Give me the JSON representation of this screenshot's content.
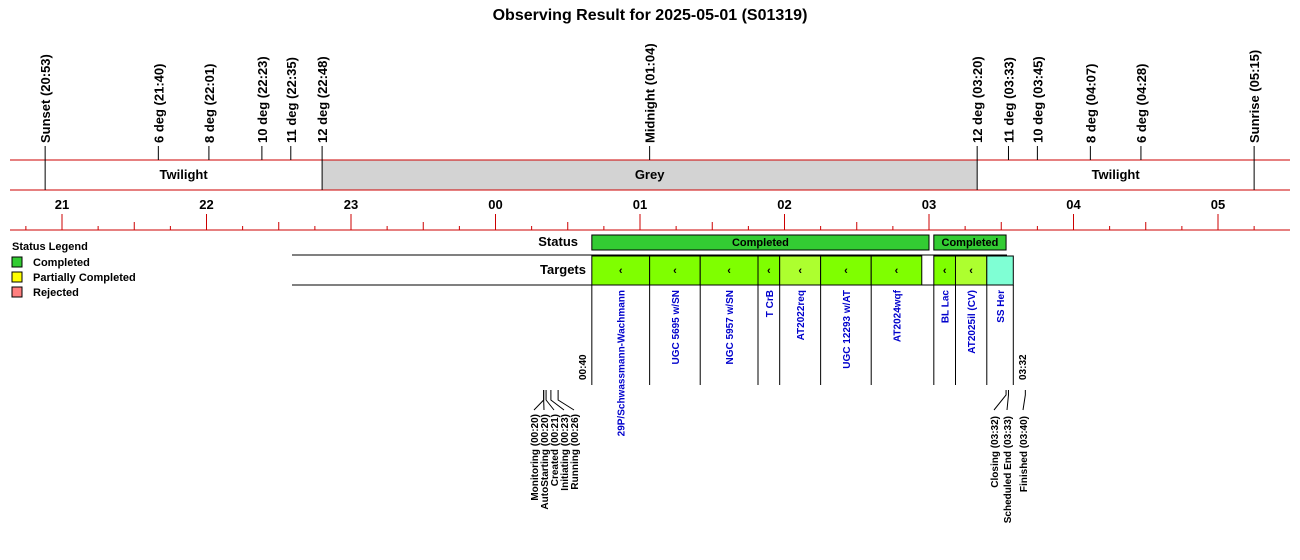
{
  "page": {
    "title": "Observing Result for 2025-05-01 (S01319)"
  },
  "sky_events": [
    {
      "label": "Sunset (20:53)",
      "time": "20:53"
    },
    {
      "label": "6 deg (21:40)",
      "time": "21:40"
    },
    {
      "label": "8 deg (22:01)",
      "time": "22:01"
    },
    {
      "label": "10 deg (22:23)",
      "time": "22:23"
    },
    {
      "label": "11 deg (22:35)",
      "time": "22:35"
    },
    {
      "label": "12 deg (22:48)",
      "time": "22:48"
    },
    {
      "label": "Midnight (01:04)",
      "time": "01:04"
    },
    {
      "label": "12 deg (03:20)",
      "time": "03:20"
    },
    {
      "label": "11 deg (03:33)",
      "time": "03:33"
    },
    {
      "label": "10 deg (03:45)",
      "time": "03:45"
    },
    {
      "label": "8 deg (04:07)",
      "time": "04:07"
    },
    {
      "label": "6 deg (04:28)",
      "time": "04:28"
    },
    {
      "label": "Sunrise (05:15)",
      "time": "05:15"
    }
  ],
  "sky_bands": [
    {
      "label": "Twilight",
      "start": "20:53",
      "end": "22:48",
      "color": "#ffffff"
    },
    {
      "label": "Grey",
      "start": "22:48",
      "end": "03:20",
      "color": "#d3d3d3"
    },
    {
      "label": "Twilight",
      "start": "03:20",
      "end": "05:15",
      "color": "#ffffff"
    }
  ],
  "hour_axis": [
    "21",
    "22",
    "23",
    "00",
    "01",
    "02",
    "03",
    "04",
    "05"
  ],
  "rows": {
    "status_label": "Status",
    "targets_label": "Targets"
  },
  "legend": {
    "title": "Status Legend",
    "items": [
      {
        "label": "Completed",
        "color": "#33cc33"
      },
      {
        "label": "Partially Completed",
        "color": "#ffff00"
      },
      {
        "label": "Rejected",
        "color": "#ff7f7f"
      }
    ]
  },
  "status_segments": [
    {
      "label": "Completed",
      "start": "00:40",
      "end": "03:00",
      "color": "#33cc33"
    },
    {
      "label": "Completed",
      "start": "03:02",
      "end": "03:32",
      "color": "#33cc33"
    }
  ],
  "targets": [
    {
      "name": "29P/Schwassmann-Wachmann",
      "start": "00:40",
      "end": "01:04",
      "color": "#7fff00",
      "mark": "‹"
    },
    {
      "name": "UGC 5695 w/SN",
      "start": "01:04",
      "end": "01:25",
      "color": "#7fff00",
      "mark": "‹"
    },
    {
      "name": "NGC 5957 w/SN",
      "start": "01:25",
      "end": "01:49",
      "color": "#7fff00",
      "mark": "‹"
    },
    {
      "name": "T CrB",
      "start": "01:49",
      "end": "01:58",
      "color": "#7fff00",
      "mark": "‹"
    },
    {
      "name": "AT2022req",
      "start": "01:58",
      "end": "02:15",
      "color": "#adff2f",
      "mark": "‹"
    },
    {
      "name": "UGC 12293 w/AT",
      "start": "02:15",
      "end": "02:36",
      "color": "#7fff00",
      "mark": "‹"
    },
    {
      "name": "AT2024wqf",
      "start": "02:36",
      "end": "02:57",
      "color": "#7fff00",
      "mark": "‹"
    },
    {
      "name": "BL Lac",
      "start": "03:02",
      "end": "03:11",
      "color": "#7fff00",
      "mark": "‹"
    },
    {
      "name": "AT2025il (CV)",
      "start": "03:11",
      "end": "03:24",
      "color": "#adff2f",
      "mark": "‹"
    },
    {
      "name": "SS Her",
      "start": "03:24",
      "end": "03:35",
      "color": "#7fffd4",
      "mark": ""
    }
  ],
  "session": {
    "start_label": "00:40",
    "end_label": "03:32"
  },
  "pre_events": [
    {
      "label": "Monitoring (00:20)",
      "time": "00:20"
    },
    {
      "label": "AutoStarting (00:20)",
      "time": "00:20"
    },
    {
      "label": "Created (00:21)",
      "time": "00:21"
    },
    {
      "label": "Initiating (00:23)",
      "time": "00:23"
    },
    {
      "label": "Running (00:26)",
      "time": "00:26"
    }
  ],
  "post_events": [
    {
      "label": "Closing (03:32)",
      "time": "03:32"
    },
    {
      "label": "Scheduled End (03:33)",
      "time": "03:33"
    },
    {
      "label": "Finished (03:40)",
      "time": "03:40"
    }
  ],
  "chart_data": {
    "type": "table",
    "title": "Observing Result for 2025-05-01 (S01319)",
    "x_axis_ticks": [
      "21",
      "22",
      "23",
      "00",
      "01",
      "02",
      "03",
      "04",
      "05"
    ],
    "xlim": [
      "20:35",
      "05:40"
    ],
    "series": [
      {
        "name": "Status",
        "values": [
          "Completed",
          "Completed"
        ]
      },
      {
        "name": "Targets",
        "values": [
          "29P/Schwassmann-Wachmann",
          "UGC 5695 w/SN",
          "NGC 5957 w/SN",
          "T CrB",
          "AT2022req",
          "UGC 12293 w/AT",
          "AT2024wqf",
          "BL Lac",
          "AT2025il (CV)",
          "SS Her"
        ]
      }
    ],
    "legend": [
      "Completed",
      "Partially Completed",
      "Rejected"
    ],
    "legend_position": "left"
  }
}
